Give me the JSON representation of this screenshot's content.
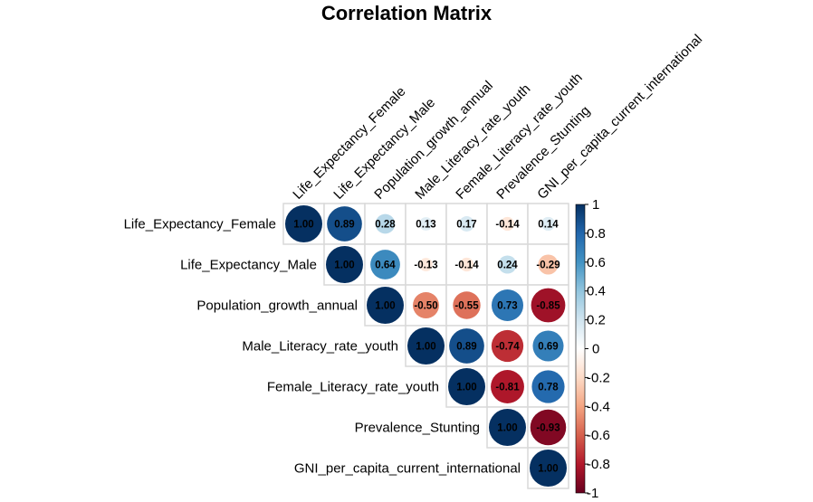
{
  "chart_data": {
    "type": "heatmap",
    "title": "Correlation Matrix",
    "method": "circle",
    "layout": "upper",
    "variables": [
      "Life_Expectancy_Female",
      "Life_Expectancy_Male",
      "Population_growth_annual",
      "Male_Literacy_rate_youth",
      "Female_Literacy_rate_youth",
      "Prevalence_Stunting",
      "GNI_per_capita_current_international"
    ],
    "matrix": [
      [
        1.0,
        0.89,
        0.28,
        0.13,
        0.17,
        -0.14,
        0.14
      ],
      [
        0.89,
        1.0,
        0.64,
        -0.13,
        -0.14,
        0.24,
        -0.29
      ],
      [
        0.28,
        0.64,
        1.0,
        -0.5,
        -0.55,
        0.73,
        -0.85
      ],
      [
        0.13,
        -0.13,
        -0.5,
        1.0,
        0.89,
        -0.74,
        0.69
      ],
      [
        0.17,
        -0.14,
        -0.55,
        0.89,
        1.0,
        -0.81,
        0.78
      ],
      [
        -0.14,
        0.24,
        0.73,
        -0.74,
        -0.81,
        1.0,
        -0.93
      ],
      [
        0.14,
        -0.29,
        -0.85,
        0.69,
        0.78,
        -0.93,
        1.0
      ]
    ],
    "value_labels": [
      [
        "1.00",
        "0.89",
        "0.28",
        "0.13",
        "0.17",
        "-0.14",
        "0.14"
      ],
      [
        "",
        "1.00",
        "0.64",
        "-0.13",
        "-0.14",
        "0.24",
        "-0.29"
      ],
      [
        "",
        "",
        "1.00",
        "-0.50",
        "-0.55",
        "0.73",
        "-0.85"
      ],
      [
        "",
        "",
        "",
        "1.00",
        "0.89",
        "-0.74",
        "0.69"
      ],
      [
        "",
        "",
        "",
        "",
        "1.00",
        "-0.81",
        "0.78"
      ],
      [
        "",
        "",
        "",
        "",
        "",
        "1.00",
        "-0.93"
      ],
      [
        "",
        "",
        "",
        "",
        "",
        "",
        "1.00"
      ]
    ],
    "colorbar": {
      "range": [
        -1,
        1
      ],
      "ticks": [
        "1",
        "0.8",
        "0.6",
        "0.4",
        "0.2",
        "0",
        "-0.2",
        "-0.4",
        "-0.6",
        "-0.8",
        "-1"
      ],
      "tick_values": [
        1,
        0.8,
        0.6,
        0.4,
        0.2,
        0,
        -0.2,
        -0.4,
        -0.6,
        -0.8,
        -1
      ],
      "placement": "right"
    },
    "palette": [
      "#67001F",
      "#B2182B",
      "#D6604D",
      "#F4A582",
      "#FDDBC7",
      "#FFFFFF",
      "#D1E5F0",
      "#92C5DE",
      "#4393C3",
      "#2166AC",
      "#053061"
    ]
  }
}
